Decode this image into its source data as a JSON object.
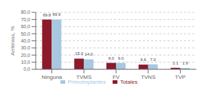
{
  "chart_data": {
    "type": "bar",
    "ylabel": "Arritmias, %",
    "categories": [
      "Ninguna",
      "TVMS",
      "FV",
      "TVNS",
      "TVP"
    ],
    "series": [
      {
        "name": "Totales",
        "color": "#8B1A2B",
        "values": [
          69.8,
          15.0,
          9.0,
          6.6,
          2.1
        ],
        "value_labels": [
          "69.8",
          "15.0",
          "9.0",
          "6.6",
          "2.1"
        ]
      },
      {
        "name": "Primoimplantes",
        "color": "#A8C8E0",
        "values": [
          69.9,
          14.0,
          9.0,
          7.0,
          1.9
        ],
        "value_labels": [
          "69.9",
          "14.0",
          "9.0",
          "7.0",
          "1.9"
        ]
      }
    ],
    "ylim": [
      0,
      80
    ],
    "yticks": [
      {
        "value": 0.0,
        "label": "0,0"
      },
      {
        "value": 10.0,
        "label": "10,0"
      },
      {
        "value": 20.0,
        "label": "20,0"
      },
      {
        "value": 30.0,
        "label": "30,0"
      },
      {
        "value": 40.0,
        "label": "40,0"
      },
      {
        "value": 50.0,
        "label": "50,0"
      },
      {
        "value": 60.0,
        "label": "60,0"
      },
      {
        "value": 70.0,
        "label": "70,0"
      },
      {
        "value": 80.0,
        "label": "80,0"
      }
    ],
    "grid": true,
    "legend": "bottom",
    "data_labels": true
  }
}
